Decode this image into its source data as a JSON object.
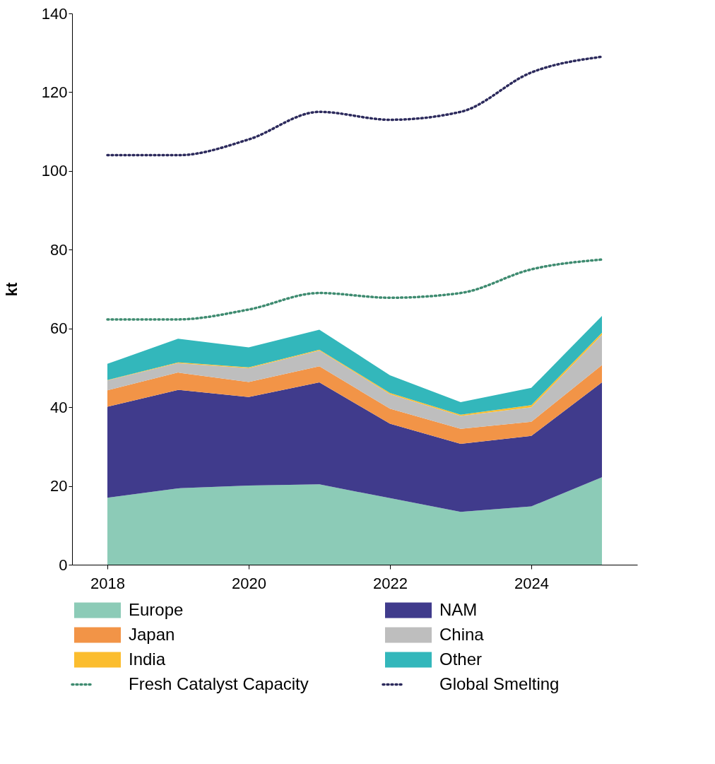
{
  "chart_data": {
    "type": "area",
    "stacked": true,
    "ylabel": "kt",
    "x": [
      2018,
      2019,
      2020,
      2021,
      2022,
      2023,
      2024,
      2025
    ],
    "xlim": [
      2017.5,
      2025.5
    ],
    "xticks": [
      2018,
      2020,
      2022,
      2024
    ],
    "ylim": [
      0,
      140
    ],
    "yticks": [
      0,
      20,
      40,
      60,
      80,
      100,
      120,
      140
    ],
    "grid": false,
    "legend": "bottom",
    "series": [
      {
        "name": "Europe",
        "color": "#8ccbb7",
        "values": [
          17.0,
          19.4,
          20.1,
          20.4,
          16.9,
          13.4,
          14.8,
          22.2
        ]
      },
      {
        "name": "NAM",
        "color": "#403b8c",
        "values": [
          23.1,
          25.0,
          22.5,
          25.9,
          18.9,
          17.3,
          17.9,
          24.1
        ]
      },
      {
        "name": "Japan",
        "color": "#f29447",
        "values": [
          4.2,
          4.4,
          3.8,
          4.1,
          3.8,
          3.8,
          3.6,
          4.4
        ]
      },
      {
        "name": "China",
        "color": "#bebebe",
        "values": [
          2.5,
          2.4,
          3.5,
          4.0,
          3.7,
          3.3,
          3.7,
          7.7
        ]
      },
      {
        "name": "India",
        "color": "#fbbd2e",
        "values": [
          0.1,
          0.2,
          0.2,
          0.2,
          0.3,
          0.3,
          0.5,
          0.5
        ]
      },
      {
        "name": "Other",
        "color": "#33b7bb",
        "values": [
          4.1,
          6.0,
          5.1,
          5.1,
          4.5,
          3.2,
          4.4,
          4.3
        ]
      },
      {
        "name": "Fresh Catalyst Capacity",
        "type": "line",
        "line_style": "dotted",
        "color": "#3e8b70",
        "values": [
          62.3,
          62.3,
          64.8,
          69.0,
          67.8,
          69.0,
          75.0,
          77.5
        ]
      },
      {
        "name": "Global Smelting",
        "type": "line",
        "line_style": "dotted",
        "color": "#2c2a5c",
        "values": [
          104,
          104,
          108,
          115,
          113,
          115,
          125,
          129
        ]
      }
    ]
  }
}
